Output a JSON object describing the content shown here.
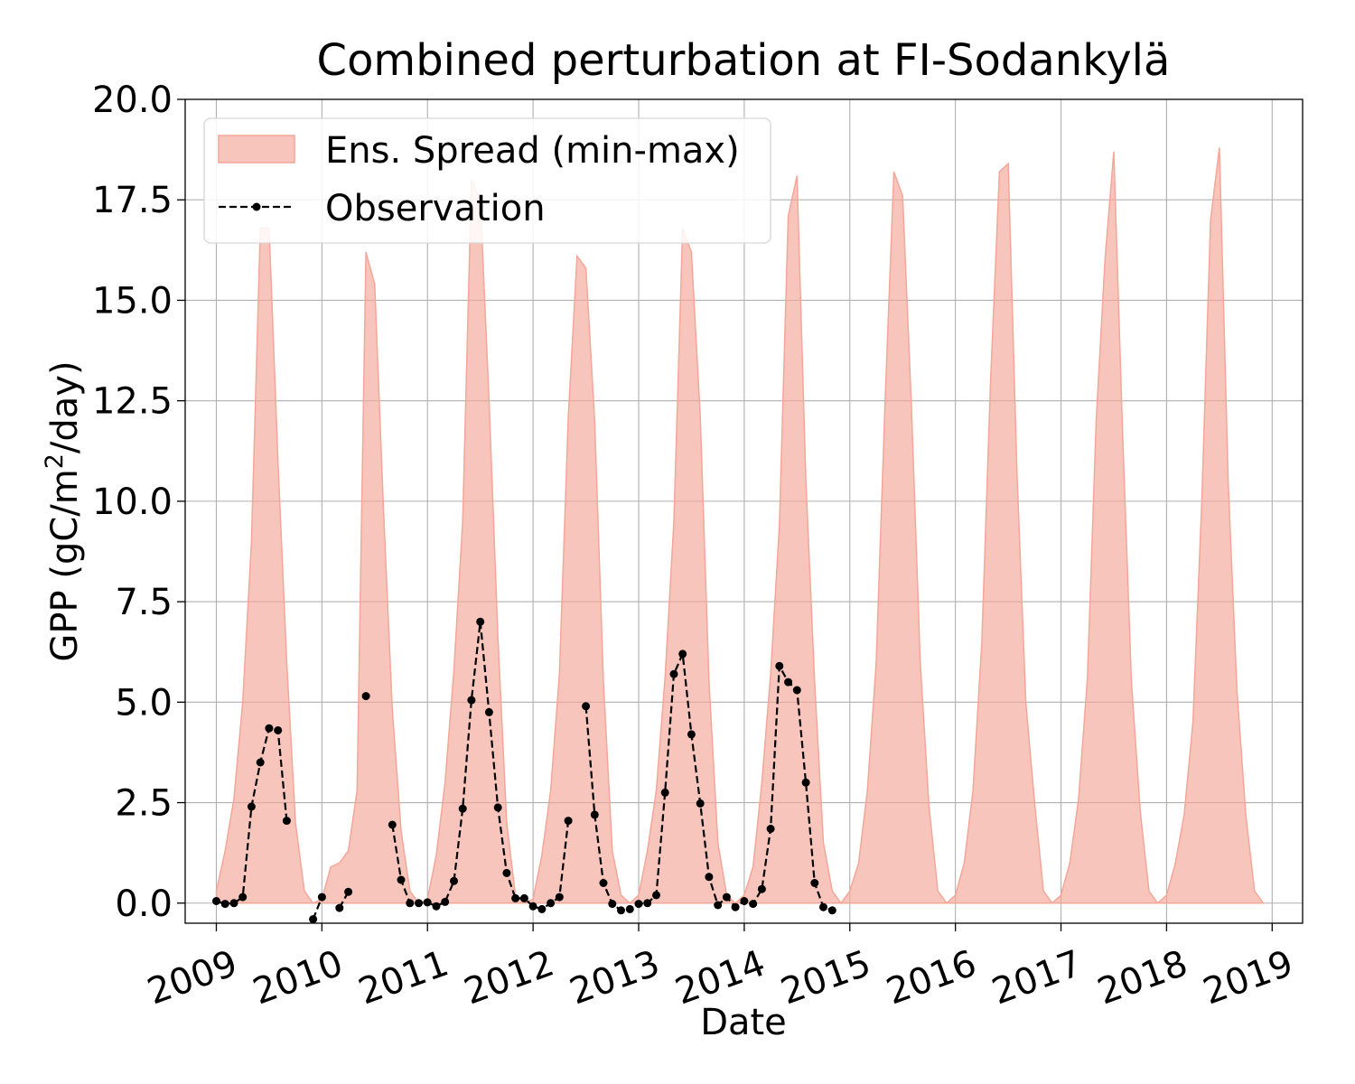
{
  "chart_data": {
    "type": "area",
    "title": "Combined perturbation at FI-Sodankylä",
    "xlabel": "Date",
    "ylabel_prefix": "GPP  (gC/m",
    "ylabel_sup": "2",
    "ylabel_suffix": "/day)",
    "xlim": [
      "2008-09-15",
      "2019-04-15"
    ],
    "ylim": [
      -0.5,
      20.0
    ],
    "xticks": [
      "2009",
      "2010",
      "2011",
      "2012",
      "2013",
      "2014",
      "2015",
      "2016",
      "2017",
      "2018",
      "2019"
    ],
    "yticks": [
      "0.0",
      "2.5",
      "5.0",
      "7.5",
      "10.0",
      "12.5",
      "15.0",
      "17.5",
      "20.0"
    ],
    "grid": true,
    "legend_position": "top-left",
    "series": [
      {
        "name": "Ens. Spread (min-max)",
        "kind": "fill_between",
        "color": "#f4a698",
        "x": [
          "2009-01",
          "2009-02",
          "2009-03",
          "2009-04",
          "2009-05",
          "2009-06",
          "2009-07",
          "2009-08",
          "2009-09",
          "2009-10",
          "2009-11",
          "2009-12",
          "2010-01",
          "2010-02",
          "2010-03",
          "2010-04",
          "2010-05",
          "2010-06",
          "2010-07",
          "2010-08",
          "2010-09",
          "2010-10",
          "2010-11",
          "2010-12",
          "2011-01",
          "2011-02",
          "2011-03",
          "2011-04",
          "2011-05",
          "2011-06",
          "2011-07",
          "2011-08",
          "2011-09",
          "2011-10",
          "2011-11",
          "2011-12",
          "2012-01",
          "2012-02",
          "2012-03",
          "2012-04",
          "2012-05",
          "2012-06",
          "2012-07",
          "2012-08",
          "2012-09",
          "2012-10",
          "2012-11",
          "2012-12",
          "2013-01",
          "2013-02",
          "2013-03",
          "2013-04",
          "2013-05",
          "2013-06",
          "2013-07",
          "2013-08",
          "2013-09",
          "2013-10",
          "2013-11",
          "2013-12",
          "2014-01",
          "2014-02",
          "2014-03",
          "2014-04",
          "2014-05",
          "2014-06",
          "2014-07",
          "2014-08",
          "2014-09",
          "2014-10",
          "2014-11",
          "2014-12",
          "2015-01",
          "2015-02",
          "2015-03",
          "2015-04",
          "2015-05",
          "2015-06",
          "2015-07",
          "2015-08",
          "2015-09",
          "2015-10",
          "2015-11",
          "2015-12",
          "2016-01",
          "2016-02",
          "2016-03",
          "2016-04",
          "2016-05",
          "2016-06",
          "2016-07",
          "2016-08",
          "2016-09",
          "2016-10",
          "2016-11",
          "2016-12",
          "2017-01",
          "2017-02",
          "2017-03",
          "2017-04",
          "2017-05",
          "2017-06",
          "2017-07",
          "2017-08",
          "2017-09",
          "2017-10",
          "2017-11",
          "2017-12",
          "2018-01",
          "2018-02",
          "2018-03",
          "2018-04",
          "2018-05",
          "2018-06",
          "2018-07",
          "2018-08",
          "2018-09",
          "2018-10",
          "2018-11",
          "2018-12"
        ],
        "max": [
          0.3,
          1.3,
          2.6,
          5.0,
          9.0,
          16.8,
          16.8,
          11.0,
          6.0,
          2.0,
          0.3,
          0.0,
          0.1,
          0.9,
          1.0,
          1.3,
          2.8,
          16.2,
          15.4,
          9.8,
          4.8,
          1.8,
          0.3,
          0.0,
          0.1,
          1.2,
          3.0,
          5.8,
          9.5,
          18.0,
          17.5,
          12.5,
          6.6,
          2.0,
          0.2,
          0.0,
          0.1,
          1.2,
          2.8,
          5.7,
          12.1,
          16.1,
          15.8,
          12.0,
          5.5,
          1.3,
          0.2,
          0.0,
          0.2,
          1.3,
          2.8,
          5.6,
          9.5,
          16.8,
          16.2,
          12.1,
          5.5,
          1.5,
          0.2,
          0.0,
          0.2,
          0.9,
          3.0,
          5.7,
          9.4,
          17.1,
          18.1,
          10.5,
          5.5,
          1.5,
          0.3,
          0.0,
          0.3,
          1.0,
          2.8,
          6.0,
          12.4,
          18.2,
          17.6,
          12.4,
          6.0,
          2.4,
          0.3,
          0.0,
          0.2,
          1.0,
          2.8,
          6.5,
          13.0,
          18.2,
          18.4,
          10.7,
          5.0,
          2.5,
          0.3,
          0.0,
          0.2,
          1.0,
          2.6,
          5.6,
          12.0,
          16.0,
          18.7,
          11.7,
          5.5,
          2.3,
          0.3,
          0.0,
          0.2,
          1.0,
          2.2,
          4.5,
          10.0,
          17.0,
          18.8,
          10.5,
          5.3,
          2.2,
          0.3,
          0.0
        ],
        "min": [
          0.0,
          0.0,
          0.0,
          0.0,
          0.0,
          0.0,
          0.0,
          0.0,
          0.0,
          0.0,
          0.0,
          0.0,
          0.0,
          0.0,
          0.0,
          0.0,
          0.0,
          0.0,
          0.0,
          0.0,
          0.0,
          0.0,
          0.0,
          0.0,
          0.0,
          0.0,
          0.0,
          0.0,
          0.0,
          0.0,
          0.0,
          0.0,
          0.0,
          0.0,
          0.0,
          0.0,
          0.0,
          0.0,
          0.0,
          0.0,
          0.0,
          0.0,
          0.0,
          0.0,
          0.0,
          0.0,
          0.0,
          0.0,
          0.0,
          0.0,
          0.0,
          0.0,
          0.0,
          0.0,
          0.0,
          0.0,
          0.0,
          0.0,
          0.0,
          0.0,
          0.0,
          0.0,
          0.0,
          0.0,
          0.0,
          0.0,
          0.0,
          0.0,
          0.0,
          0.0,
          0.0,
          0.0,
          0.0,
          0.0,
          0.0,
          0.0,
          0.0,
          0.0,
          0.0,
          0.0,
          0.0,
          0.0,
          0.0,
          0.0,
          0.0,
          0.0,
          0.0,
          0.0,
          0.0,
          0.0,
          0.0,
          0.0,
          0.0,
          0.0,
          0.0,
          0.0,
          0.0,
          0.0,
          0.0,
          0.0,
          0.0,
          0.0,
          0.0,
          0.0,
          0.0,
          0.0,
          0.0,
          0.0,
          0.0,
          0.0,
          0.0,
          0.0,
          0.0,
          0.0,
          0.0,
          0.0,
          0.0,
          0.0,
          0.0,
          0.0
        ]
      },
      {
        "name": "Observation",
        "kind": "line",
        "style": "dashed",
        "marker": "dot",
        "color": "#000000",
        "x": [
          "2009-01",
          "2009-02",
          "2009-03",
          "2009-04",
          "2009-05",
          "2009-06",
          "2009-07",
          "2009-08",
          "2009-09",
          "2009-10",
          "2009-11",
          "2009-12",
          "2010-01",
          "2010-02",
          "2010-03",
          "2010-04",
          "2010-05",
          "2010-06",
          "2010-07",
          "2010-08",
          "2010-09",
          "2010-10",
          "2010-11",
          "2010-12",
          "2011-01",
          "2011-02",
          "2011-03",
          "2011-04",
          "2011-05",
          "2011-06",
          "2011-07",
          "2011-08",
          "2011-09",
          "2011-10",
          "2011-11",
          "2011-12",
          "2012-01",
          "2012-02",
          "2012-03",
          "2012-04",
          "2012-05",
          "2012-06",
          "2012-07",
          "2012-08",
          "2012-09",
          "2012-10",
          "2012-11",
          "2012-12",
          "2013-01",
          "2013-02",
          "2013-03",
          "2013-04",
          "2013-05",
          "2013-06",
          "2013-07",
          "2013-08",
          "2013-09",
          "2013-10",
          "2013-11",
          "2013-12",
          "2014-01",
          "2014-02",
          "2014-03",
          "2014-04",
          "2014-05",
          "2014-06",
          "2014-07",
          "2014-08",
          "2014-09",
          "2014-10",
          "2014-11",
          "2014-12"
        ],
        "y": [
          0.05,
          -0.02,
          0.0,
          0.15,
          2.4,
          3.5,
          4.35,
          4.3,
          2.05,
          null,
          null,
          -0.4,
          0.15,
          null,
          -0.12,
          0.28,
          null,
          5.15,
          null,
          null,
          1.95,
          0.58,
          0.0,
          0.0,
          0.02,
          -0.08,
          0.03,
          0.55,
          2.35,
          5.05,
          7.0,
          4.75,
          2.38,
          0.75,
          0.12,
          0.12,
          -0.08,
          -0.15,
          0.0,
          0.15,
          2.05,
          null,
          4.9,
          2.2,
          0.5,
          -0.02,
          -0.18,
          -0.15,
          -0.02,
          0.0,
          0.2,
          2.75,
          5.7,
          6.2,
          4.2,
          2.48,
          0.65,
          -0.05,
          0.15,
          -0.1,
          0.05,
          -0.02,
          0.35,
          1.85,
          5.9,
          5.5,
          5.3,
          3.0,
          0.5,
          -0.1,
          -0.18,
          null
        ]
      }
    ]
  }
}
